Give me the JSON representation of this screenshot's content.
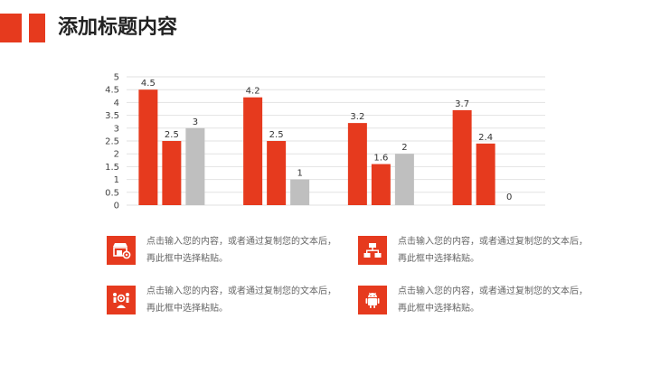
{
  "header": {
    "title": "添加标题内容"
  },
  "chart_data": {
    "type": "bar",
    "categories": [
      "",
      "",
      "",
      ""
    ],
    "series": [
      {
        "values": [
          4.5,
          4.2,
          3.2,
          3.7
        ],
        "color": "#E63A1E"
      },
      {
        "values": [
          2.5,
          2.5,
          1.6,
          2.4
        ],
        "color": "#E63A1E"
      },
      {
        "values": [
          3,
          1,
          2,
          0
        ],
        "color": "#BFBFBF"
      }
    ],
    "ylim": [
      0,
      5
    ],
    "yticks": [
      "0",
      "0.5",
      "1",
      "1.5",
      "2",
      "2.5",
      "3",
      "3.5",
      "4",
      "4.5",
      "5"
    ],
    "grid": true,
    "title": "",
    "xlabel": "",
    "ylabel": ""
  },
  "features": [
    {
      "icon": "shop-gear-icon",
      "text": "点击输入您的内容，或者通过复制您的文本后，再此框中选择粘贴。"
    },
    {
      "icon": "network-icon",
      "text": "点击输入您的内容，或者通过复制您的文本后，再此框中选择粘贴。"
    },
    {
      "icon": "team-gear-icon",
      "text": "点击输入您的内容，或者通过复制您的文本后，再此框中选择粘贴。"
    },
    {
      "icon": "android-icon",
      "text": "点击输入您的内容，或者通过复制您的文本后，再此框中选择粘贴。"
    }
  ]
}
